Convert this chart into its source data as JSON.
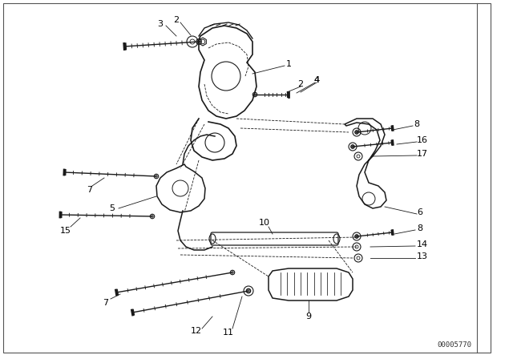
{
  "background_color": "#ffffff",
  "border_color": "#555555",
  "diagram_id": "00005770",
  "fig_width": 6.4,
  "fig_height": 4.48,
  "dpi": 100,
  "line_color": "#1a1a1a",
  "label_color": "#000000",
  "leader_color": "#333333"
}
